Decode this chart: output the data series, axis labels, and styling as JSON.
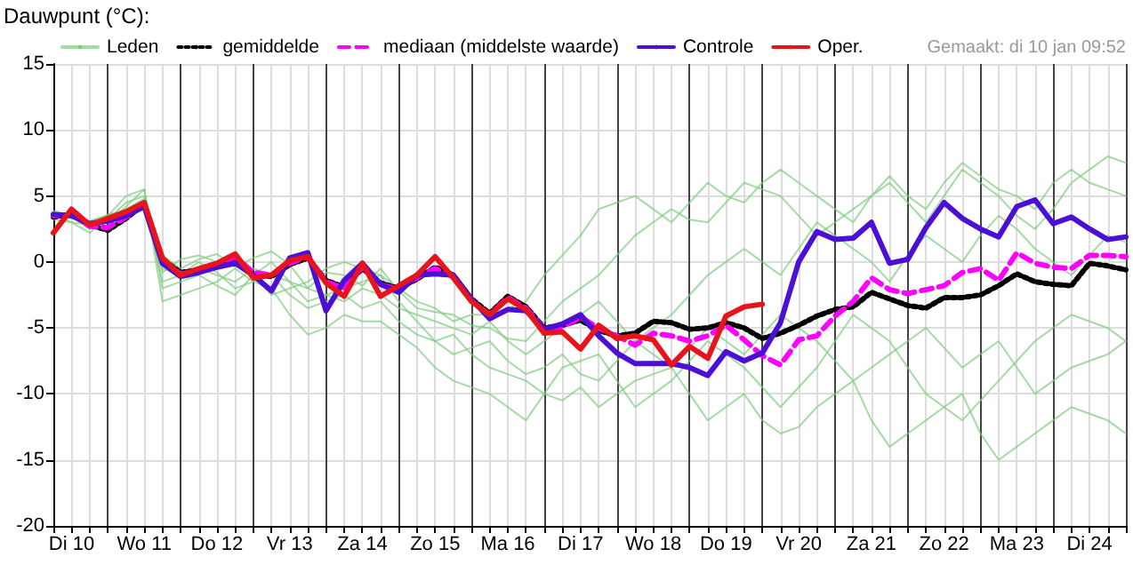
{
  "chart_data": {
    "type": "line",
    "title": "Dauwpunt (°C):",
    "annotations": [
      "Gemaakt: di 10 jan 09:52"
    ],
    "categories": [
      null,
      "Di 10",
      null,
      null,
      null,
      "Wo 11",
      null,
      null,
      null,
      "Do 12",
      null,
      null,
      null,
      "Vr 13",
      null,
      null,
      null,
      "Za 14",
      null,
      null,
      null,
      "Zo 15",
      null,
      null,
      null,
      "Ma 16",
      null,
      null,
      null,
      "Di 17",
      null,
      null,
      null,
      "Wo 18",
      null,
      null,
      null,
      "Do 19",
      null,
      null,
      null,
      "Vr 20",
      null,
      null,
      null,
      "Za 21",
      null,
      null,
      null,
      "Zo 22",
      null,
      null,
      null,
      "Ma 23",
      null,
      null,
      null,
      "Di 24",
      null,
      null
    ],
    "ylim": [
      -20,
      15
    ],
    "yticks": [
      -20,
      -15,
      -10,
      -5,
      0,
      5,
      10,
      15
    ],
    "grid": true,
    "legend": "top",
    "marker": "none",
    "series": [
      {
        "name": "Leden",
        "color": "#7dcc7d",
        "line_style": "solid",
        "values": [
          3.5,
          3.3,
          3.0,
          3.6,
          3.9,
          4.5,
          0.5,
          -0.5,
          0.2,
          0.6,
          -0.4,
          0.3,
          0.8,
          -0.2,
          -2.0,
          -0.8,
          -1.0,
          -1.8,
          -0.5,
          -2.2,
          -3.5,
          -3.8,
          -4.0,
          -4.8,
          -5.0,
          -5.8,
          -6.0,
          -4.5,
          -3.0,
          -2.0,
          -1.0,
          0.5,
          2.0,
          3.0,
          4.0,
          3.2,
          3.0,
          4.5,
          6.0,
          5.5,
          5.0,
          3.5,
          2.0,
          3.0,
          4.0,
          5.0,
          6.0,
          4.5,
          3.0,
          5.0,
          7.0,
          6.0,
          5.0,
          3.5,
          2.5,
          4.0,
          6.0,
          7.0,
          8.0,
          7.5
        ]
      },
      {
        "color": "#7dcc7d",
        "line_style": "solid",
        "values": [
          3.8,
          3.5,
          2.5,
          3.2,
          4.5,
          5.0,
          -1.5,
          -1.0,
          -0.5,
          -1.0,
          -1.5,
          -0.5,
          -1.0,
          -2.5,
          -3.5,
          -3.0,
          -2.5,
          -3.5,
          -3.0,
          -4.5,
          -5.5,
          -6.0,
          -5.5,
          -7.0,
          -8.0,
          -8.5,
          -9.0,
          -10.0,
          -10.5,
          -9.5,
          -11.0,
          -10.0,
          -9.0,
          -8.5,
          -8.0,
          -10.0,
          -12.0,
          -11.0,
          -10.0,
          -12.0,
          -13.0,
          -12.5,
          -11.0,
          -10.0,
          -9.0,
          -12.0,
          -14.0,
          -13.0,
          -12.0,
          -11.0,
          -10.0,
          -13.0,
          -15.0,
          -14.0,
          -13.0,
          -12.0,
          -11.0,
          -11.5,
          -12.0,
          -13.0
        ]
      },
      {
        "color": "#7dcc7d",
        "line_style": "solid",
        "values": [
          3.2,
          3.0,
          2.8,
          3.5,
          4.0,
          4.8,
          -0.8,
          0.2,
          0.5,
          0.0,
          0.0,
          -1.0,
          -2.5,
          -2.0,
          -1.5,
          -0.5,
          0.0,
          -0.5,
          -1.0,
          -2.0,
          -3.0,
          -3.5,
          -4.5,
          -4.0,
          -4.0,
          -3.5,
          -3.0,
          -1.0,
          0.5,
          2.0,
          4.0,
          4.5,
          5.0,
          4.0,
          3.0,
          4.5,
          6.0,
          5.0,
          4.5,
          6.0,
          7.0,
          6.0,
          5.0,
          4.0,
          3.0,
          5.0,
          6.5,
          5.0,
          4.0,
          6.0,
          7.5,
          6.5,
          5.5,
          5.0,
          4.0,
          6.0,
          7.0,
          6.0,
          5.5,
          5.0
        ]
      },
      {
        "color": "#7dcc7d",
        "line_style": "solid",
        "values": [
          3.6,
          3.0,
          2.2,
          3.5,
          5.0,
          5.5,
          -2.0,
          -1.5,
          -1.0,
          -1.8,
          -2.5,
          -1.0,
          0.0,
          -1.5,
          -3.0,
          -2.5,
          -2.0,
          -1.5,
          -1.0,
          -3.0,
          -4.5,
          -6.0,
          -7.0,
          -6.5,
          -6.0,
          -7.5,
          -8.5,
          -8.0,
          -7.0,
          -8.5,
          -9.0,
          -7.5,
          -6.0,
          -7.0,
          -8.0,
          -6.5,
          -5.0,
          -6.0,
          -7.0,
          -5.5,
          -4.0,
          -5.0,
          -6.0,
          -7.5,
          -9.0,
          -8.0,
          -7.0,
          -6.0,
          -5.0,
          -6.5,
          -8.0,
          -7.0,
          -6.0,
          -8.0,
          -10.0,
          -9.0,
          -8.0,
          -7.5,
          -7.0,
          -6.0
        ]
      },
      {
        "color": "#7dcc7d",
        "line_style": "solid",
        "values": [
          3.9,
          3.5,
          2.6,
          3.0,
          4.2,
          5.5,
          -3.0,
          -2.5,
          -2.0,
          -1.5,
          -0.5,
          -1.5,
          -2.0,
          -4.0,
          -5.5,
          -5.0,
          -4.0,
          -4.5,
          -4.5,
          -5.5,
          -6.5,
          -8.0,
          -9.0,
          -9.5,
          -10.0,
          -11.0,
          -12.0,
          -10.0,
          -8.0,
          -7.5,
          -7.0,
          -9.0,
          -11.0,
          -10.0,
          -9.0,
          -7.5,
          -6.0,
          -7.0,
          -8.0,
          -9.5,
          -11.0,
          -9.5,
          -8.0,
          -6.0,
          -4.0,
          -5.0,
          -6.0,
          -8.0,
          -10.0,
          -11.0,
          -12.0,
          -10.5,
          -9.0,
          -7.5,
          -6.0,
          -5.0,
          -4.0,
          -4.5,
          -5.0,
          -6.0
        ]
      },
      {
        "color": "#7dcc7d",
        "line_style": "solid",
        "values": [
          3.7,
          3.4,
          3.1,
          3.5,
          3.6,
          4.2,
          -0.5,
          -1.0,
          0.0,
          -0.8,
          -2.0,
          -1.5,
          -1.0,
          -1.5,
          -2.0,
          -2.5,
          -3.0,
          -2.0,
          -2.5,
          -3.5,
          -4.0,
          -4.5,
          -5.0,
          -5.5,
          -4.5,
          -6.0,
          -7.0,
          -6.0,
          -5.0,
          -4.0,
          -3.0,
          -4.5,
          -6.0,
          -5.0,
          -4.0,
          -2.5,
          -1.0,
          0.0,
          1.0,
          0.0,
          -1.0,
          1.0,
          3.0,
          2.0,
          1.0,
          0.0,
          -1.5,
          0.5,
          2.0,
          1.0,
          0.0,
          2.0,
          3.5,
          2.5,
          1.0,
          0.0,
          -1.0,
          0.5,
          2.0,
          1.5
        ]
      },
      {
        "name": "gemiddelde",
        "color": "#000000",
        "line_style": "dotted",
        "values": [
          3.4,
          3.6,
          2.8,
          2.4,
          3.3,
          4.4,
          0.2,
          -0.8,
          -0.6,
          -0.3,
          0.2,
          -0.9,
          -1.1,
          -0.2,
          0.3,
          -1.4,
          -1.9,
          -0.5,
          -1.6,
          -2.0,
          -1.3,
          -0.4,
          -1.0,
          -2.8,
          -3.9,
          -2.6,
          -3.4,
          -5.0,
          -4.8,
          -4.4,
          -5.2,
          -5.6,
          -5.4,
          -4.5,
          -4.6,
          -5.1,
          -5.0,
          -4.6,
          -5.0,
          -5.8,
          -5.4,
          -4.8,
          -4.1,
          -3.6,
          -3.4,
          -2.3,
          -2.8,
          -3.3,
          -3.5,
          -2.7,
          -2.7,
          -2.5,
          -1.8,
          -0.9,
          -1.5,
          -1.7,
          -1.8,
          -0.1,
          -0.3,
          -0.6
        ]
      },
      {
        "name": "mediaan (middelste waarde)",
        "color": "#ff00ff",
        "line_style": "dashed",
        "values": [
          3.5,
          3.6,
          2.7,
          2.6,
          3.4,
          4.3,
          0.1,
          -0.9,
          -0.7,
          -0.2,
          0.4,
          -0.8,
          -1.0,
          -0.1,
          0.4,
          -1.5,
          -2.0,
          -0.4,
          -1.7,
          -2.1,
          -1.2,
          -0.5,
          -1.1,
          -2.9,
          -4.0,
          -2.7,
          -3.5,
          -5.1,
          -4.9,
          -4.2,
          -5.0,
          -5.6,
          -6.3,
          -5.4,
          -5.6,
          -6.0,
          -5.6,
          -4.8,
          -5.9,
          -7.1,
          -7.8,
          -5.9,
          -5.6,
          -4.1,
          -3.0,
          -1.2,
          -2.1,
          -2.4,
          -2.1,
          -1.8,
          -0.8,
          -0.5,
          -1.4,
          0.7,
          -0.1,
          -0.4,
          -0.5,
          0.5,
          0.5,
          0.4
        ]
      },
      {
        "name": "Controle",
        "color": "#4b0fd6",
        "line_style": "solid",
        "values": [
          3.6,
          3.5,
          2.9,
          3.1,
          3.5,
          4.2,
          -0.1,
          -1.1,
          -0.8,
          -0.4,
          -0.1,
          -1.0,
          -2.2,
          0.3,
          0.7,
          -3.7,
          -1.4,
          -0.1,
          -1.7,
          -2.3,
          -1.0,
          -0.9,
          -1.0,
          -2.8,
          -4.3,
          -3.6,
          -3.7,
          -5.1,
          -4.7,
          -4.0,
          -5.6,
          -6.9,
          -7.7,
          -7.7,
          -7.7,
          -8.0,
          -8.6,
          -6.8,
          -7.5,
          -6.9,
          -4.6,
          0.0,
          2.3,
          1.7,
          1.8,
          3.0,
          -0.1,
          0.2,
          2.6,
          4.5,
          3.3,
          2.5,
          1.9,
          4.2,
          4.7,
          2.9,
          3.4,
          2.5,
          1.7,
          1.9
        ]
      },
      {
        "name": "Oper.",
        "color": "#e8141c",
        "line_style": "solid",
        "values": [
          2.2,
          4.0,
          2.8,
          3.3,
          3.8,
          4.5,
          0.3,
          -1.0,
          -0.5,
          -0.1,
          0.6,
          -1.2,
          -1.0,
          0.1,
          0.4,
          -1.6,
          -2.6,
          -0.1,
          -2.6,
          -1.8,
          -1.0,
          0.4,
          -1.2,
          -3.0,
          -4.0,
          -2.8,
          -3.6,
          -5.4,
          -5.3,
          -6.6,
          -4.8,
          -5.8,
          -5.6,
          -5.9,
          -7.8,
          -6.4,
          -7.3,
          -4.1,
          -3.4,
          -3.2,
          null,
          null,
          null,
          null,
          null,
          null,
          null,
          null,
          null,
          null,
          null,
          null,
          null,
          null,
          null,
          null,
          null,
          null,
          null,
          null
        ]
      }
    ]
  }
}
